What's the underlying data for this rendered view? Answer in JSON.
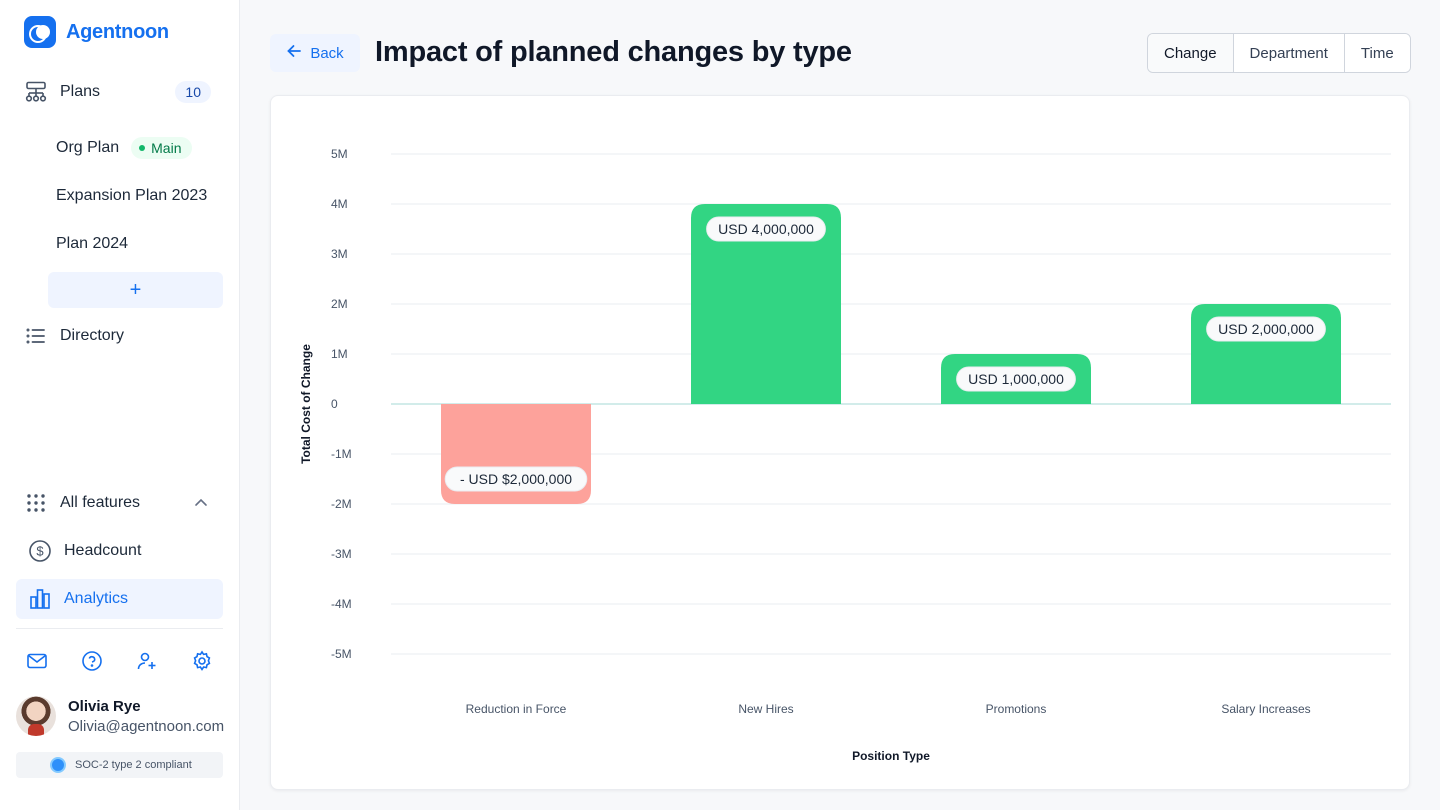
{
  "app": {
    "name": "Agentnoon"
  },
  "sidebar": {
    "plans": {
      "label": "Plans",
      "count": "10"
    },
    "plan_items": [
      {
        "label": "Org Plan",
        "badge": "Main"
      },
      {
        "label": "Expansion Plan 2023"
      },
      {
        "label": "Plan 2024"
      }
    ],
    "add_plan_label": "+",
    "directory_label": "Directory",
    "all_features_label": "All features",
    "headcount_label": "Headcount",
    "analytics_label": "Analytics",
    "user": {
      "name": "Olivia Rye",
      "email": "Olivia@agentnoon.com"
    },
    "compliance": "SOC-2 type 2 compliant"
  },
  "header": {
    "back_label": "Back",
    "title": "Impact of planned changes by type",
    "segments": [
      "Change",
      "Department",
      "Time"
    ],
    "active_segment": "Change"
  },
  "colors": {
    "accent": "#1570ef",
    "positive": "#32d583",
    "negative": "#fda29b"
  },
  "chart_data": {
    "type": "bar",
    "categories": [
      "Reduction in Force",
      "New Hires",
      "Promotions",
      "Salary Increases"
    ],
    "values": [
      -2000000,
      4000000,
      1000000,
      2000000
    ],
    "value_labels": [
      "- USD $2,000,000",
      "USD 4,000,000",
      "USD 1,000,000",
      "USD 2,000,000"
    ],
    "xlabel": "Position Type",
    "ylabel": "Total Cost of Change",
    "ylim": [
      -5000000,
      5000000
    ],
    "yticks": [
      5000000,
      4000000,
      3000000,
      2000000,
      1000000,
      0,
      -1000000,
      -2000000,
      -3000000,
      -4000000,
      -5000000
    ],
    "ytick_labels": [
      "5M",
      "4M",
      "3M",
      "2M",
      "1M",
      "0",
      "-1M",
      "-2M",
      "-3M",
      "-4M",
      "-5M"
    ],
    "grid": true
  }
}
